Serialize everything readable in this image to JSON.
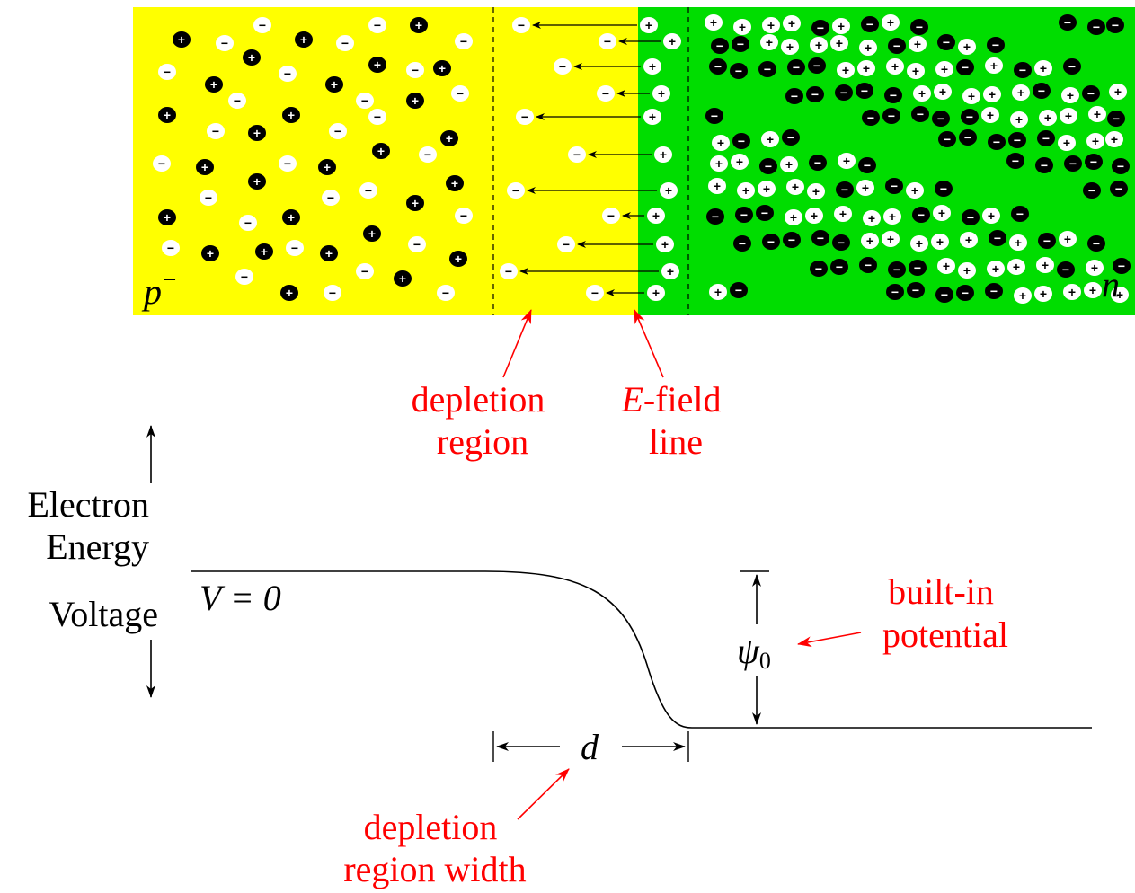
{
  "regions": {
    "p_label": "p",
    "p_superscript": "−",
    "n_label": "n",
    "p_color": "#ffff00",
    "n_color": "#00dd00"
  },
  "carrier_symbols": {
    "plus": "+",
    "minus": "−"
  },
  "annotations": {
    "depletion_region": [
      "depletion",
      "region"
    ],
    "efield_line": {
      "italic": "E",
      "rest": "-field",
      "line2": "line"
    },
    "built_in_potential": [
      "built-in",
      "potential"
    ],
    "depletion_width": [
      "depletion",
      "region width"
    ],
    "annotation_color": "#ff0000"
  },
  "axis": {
    "lines": [
      "Electron",
      "Energy",
      "Voltage"
    ]
  },
  "energy_curve": {
    "v_label": "V = 0",
    "psi_symbol": "ψ",
    "psi_subscript": "0",
    "d_symbol": "d"
  }
}
